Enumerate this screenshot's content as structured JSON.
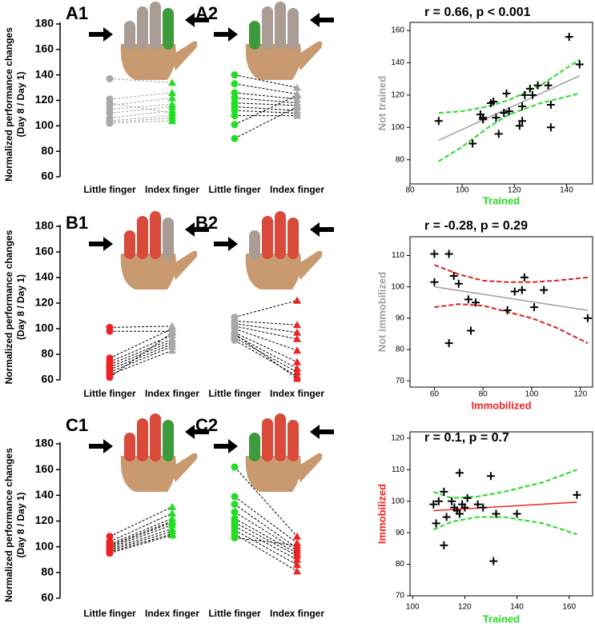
{
  "chart_data": [
    {
      "type": "paired",
      "ylabel": [
        "Normalized performance changes",
        "(Day 8 / Day 1)"
      ],
      "ylim": [
        60,
        180
      ],
      "yticks": [
        60,
        80,
        100,
        120,
        140,
        160,
        180
      ],
      "categories": [
        "Little finger",
        "Index finger"
      ],
      "panels": [
        {
          "label": "A1",
          "colors": [
            "#a8a8a8",
            "#22dd22"
          ],
          "link_color": "#a8a8a8",
          "pairs": [
            [
              137,
              134
            ],
            [
              121,
              126
            ],
            [
              116,
              122
            ],
            [
              113,
              117
            ],
            [
              110,
              115
            ],
            [
              106,
              112
            ],
            [
              104,
              108
            ],
            [
              103,
              106
            ],
            [
              102,
              104
            ],
            [
              118,
              110
            ]
          ]
        },
        {
          "label": "A2",
          "colors": [
            "#22dd22",
            "#a8a8a8"
          ],
          "link_color": "#000000",
          "pairs": [
            [
              140,
              130
            ],
            [
              133,
              125
            ],
            [
              126,
              121
            ],
            [
              122,
              118
            ],
            [
              118,
              116
            ],
            [
              115,
              112
            ],
            [
              112,
              110
            ],
            [
              108,
              108
            ],
            [
              101,
              124
            ],
            [
              90,
              115
            ]
          ]
        }
      ]
    },
    {
      "type": "scatter",
      "annotation": "r = 0.66, p < 0.001",
      "xlabel": "Trained",
      "xlabel_color": "#22dd22",
      "ylabel": "Not trained",
      "ylabel_color": "#a0a0a0",
      "xlim": [
        80,
        150
      ],
      "xticks": [
        80,
        100,
        120,
        140
      ],
      "ylim": [
        65,
        165
      ],
      "yticks": [
        80,
        100,
        120,
        140,
        160
      ],
      "x": [
        91,
        104,
        107,
        108,
        108,
        111,
        112,
        113,
        114,
        116,
        117,
        118,
        122,
        123,
        123,
        124,
        126,
        127,
        129,
        133,
        134,
        134,
        141,
        145
      ],
      "y": [
        104,
        90,
        108,
        106,
        105,
        115,
        116,
        106,
        96,
        109,
        121,
        110,
        101,
        104,
        113,
        120,
        124,
        120,
        126,
        126,
        100,
        114,
        156,
        139
      ],
      "fit": {
        "x": [
          91,
          145
        ],
        "y": [
          92,
          132
        ],
        "color": "#a0a0a0"
      },
      "band": {
        "x": [
          91,
          100,
          110,
          118,
          130,
          145
        ],
        "upper": [
          109,
          110,
          113,
          117,
          126,
          142
        ],
        "lower": [
          79,
          88,
          100,
          108,
          115,
          121
        ],
        "color": "#22dd22"
      }
    },
    {
      "type": "paired",
      "ylabel": [
        "Normalized performance changes",
        "(Day 8 / Day 1)"
      ],
      "ylim": [
        60,
        180
      ],
      "yticks": [
        60,
        80,
        100,
        120,
        140,
        160,
        180
      ],
      "categories": [
        "Little finger",
        "Index finger"
      ],
      "panels": [
        {
          "label": "B1",
          "colors": [
            "#ee2222",
            "#a8a8a8"
          ],
          "link_color": "#000000",
          "pairs": [
            [
              101,
              102
            ],
            [
              98,
              98
            ],
            [
              77,
              100
            ],
            [
              74,
              95
            ],
            [
              72,
              92
            ],
            [
              70,
              90
            ],
            [
              68,
              88
            ],
            [
              66,
              86
            ],
            [
              64,
              83
            ],
            [
              62,
              97
            ]
          ]
        },
        {
          "label": "B2",
          "colors": [
            "#a8a8a8",
            "#ee2222"
          ],
          "link_color": "#000000",
          "pairs": [
            [
              109,
              122
            ],
            [
              106,
              103
            ],
            [
              104,
              97
            ],
            [
              102,
              92
            ],
            [
              100,
              83
            ],
            [
              97,
              74
            ],
            [
              95,
              69
            ],
            [
              93,
              66
            ],
            [
              91,
              63
            ],
            [
              96,
              61
            ]
          ]
        }
      ]
    },
    {
      "type": "scatter",
      "annotation": "r = -0.28, p = 0.29",
      "xlabel": "Immobilized",
      "xlabel_color": "#ee2222",
      "ylabel": "Not immobilized",
      "ylabel_color": "#a0a0a0",
      "xlim": [
        50,
        125
      ],
      "xticks": [
        60,
        80,
        100,
        120
      ],
      "ylim": [
        68,
        116
      ],
      "yticks": [
        70,
        80,
        90,
        100,
        110
      ],
      "x": [
        60,
        60,
        66,
        66,
        68,
        70,
        74,
        75,
        77,
        90,
        93,
        96,
        97,
        101,
        105,
        123
      ],
      "y": [
        110.5,
        101.5,
        110.5,
        82,
        103.5,
        101,
        96,
        86,
        95,
        92.5,
        98.5,
        99,
        103,
        93.5,
        99,
        90
      ],
      "fit": {
        "x": [
          60,
          123
        ],
        "y": [
          100,
          92.5
        ],
        "color": "#a0a0a0"
      },
      "band": {
        "x": [
          60,
          70,
          80,
          90,
          100,
          110,
          123
        ],
        "upper": [
          107,
          104,
          102,
          101.5,
          101.5,
          102,
          103
        ],
        "lower": [
          93.5,
          94.5,
          94,
          92,
          90,
          87,
          82
        ],
        "color": "#dd2222"
      }
    },
    {
      "type": "paired",
      "ylabel": [
        "Normalized performance changes",
        "(Day 8 / Day 1)"
      ],
      "ylim": [
        60,
        180
      ],
      "yticks": [
        60,
        80,
        100,
        120,
        140,
        160,
        180
      ],
      "categories": [
        "Little finger",
        "Index finger"
      ],
      "panels": [
        {
          "label": "C1",
          "colors": [
            "#ee2222",
            "#22dd22"
          ],
          "link_color": "#000000",
          "pairs": [
            [
              108,
              131
            ],
            [
              104,
              126
            ],
            [
              102,
              122
            ],
            [
              100,
              119
            ],
            [
              99,
              117
            ],
            [
              98,
              114
            ],
            [
              97,
              112
            ],
            [
              96,
              110
            ],
            [
              95,
              109
            ],
            [
              101,
              120
            ]
          ]
        },
        {
          "label": "C2",
          "colors": [
            "#22dd22",
            "#ee2222"
          ],
          "link_color": "#000000",
          "pairs": [
            [
              162,
              108
            ],
            [
              139,
              103
            ],
            [
              133,
              99
            ],
            [
              127,
              97
            ],
            [
              122,
              95
            ],
            [
              119,
              93
            ],
            [
              116,
              90
            ],
            [
              113,
              86
            ],
            [
              110,
              81
            ],
            [
              107,
              101
            ]
          ]
        }
      ]
    },
    {
      "type": "scatter",
      "annotation": "r = 0.1, p = 0.7",
      "xlabel": "Trained",
      "xlabel_color": "#22dd22",
      "ylabel": "Immobilized",
      "ylabel_color": "#ee2222",
      "xlim": [
        99,
        169
      ],
      "xticks": [
        100,
        120,
        140,
        160
      ],
      "ylim": [
        70,
        122
      ],
      "yticks": [
        70,
        80,
        90,
        100,
        110,
        120
      ],
      "x": [
        108,
        109,
        110,
        112,
        112,
        113,
        115,
        116,
        117,
        118,
        118,
        119,
        120,
        121,
        125,
        127,
        130,
        131,
        132,
        140,
        163
      ],
      "y": [
        99,
        93,
        100,
        103,
        86,
        95,
        100,
        98,
        97,
        96,
        109,
        99,
        98,
        101,
        99,
        98,
        108,
        81,
        96,
        96,
        102
      ],
      "fit": {
        "x": [
          108,
          163
        ],
        "y": [
          97,
          99.7
        ],
        "color": "#ee2222"
      },
      "band": {
        "x": [
          108,
          115,
          125,
          135,
          150,
          163
        ],
        "upper": [
          103,
          101,
          101.5,
          103,
          106,
          110
        ],
        "lower": [
          91,
          93.5,
          95,
          95,
          93,
          89.5
        ],
        "color": "#22dd22"
      }
    }
  ]
}
